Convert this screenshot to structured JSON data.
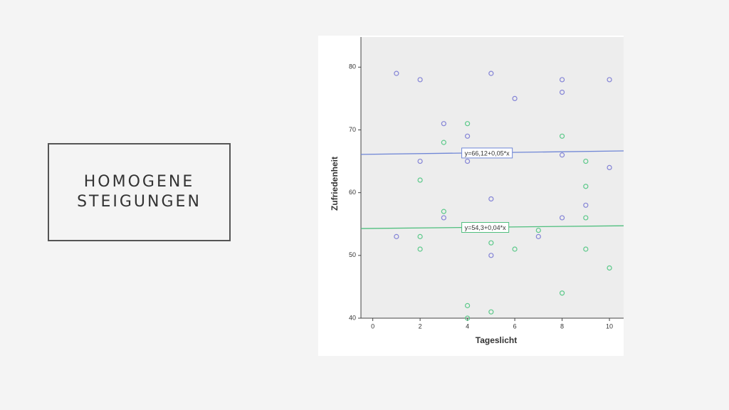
{
  "slide_title": "HOMOGENE STEIGUNGEN",
  "chart_data": {
    "type": "scatter",
    "x_label": "Tageslicht",
    "y_label": "Zufriedenheit",
    "xlim": [
      -0.5,
      10.6
    ],
    "ylim": [
      40,
      84.8
    ],
    "xticks": [
      0,
      2,
      4,
      6,
      8,
      10
    ],
    "yticks": [
      40,
      50,
      60,
      70,
      80
    ],
    "series": [
      {
        "color": "#8484d6",
        "x": [
          1,
          1,
          2,
          2,
          3,
          3,
          4,
          4,
          5,
          5,
          5,
          6,
          7,
          8,
          8,
          8,
          8,
          9,
          10,
          10
        ],
        "values": [
          79,
          53,
          78,
          65,
          71,
          56,
          69,
          65,
          79,
          59,
          50,
          75,
          53,
          78,
          76,
          66,
          56,
          58,
          78,
          64
        ]
      },
      {
        "color": "#5cc98a",
        "x": [
          2,
          2,
          2,
          3,
          3,
          4,
          4,
          4,
          5,
          5,
          6,
          7,
          8,
          8,
          9,
          9,
          9,
          9,
          10
        ],
        "values": [
          62,
          53,
          51,
          68,
          57,
          71,
          42,
          40,
          52,
          41,
          51,
          54,
          69,
          44,
          65,
          61,
          56,
          51,
          48
        ]
      }
    ],
    "fit_lines": [
      {
        "color": "#6f86d6",
        "intercept": 66.12,
        "slope": 0.05,
        "label": "y=66,12+0,05*x",
        "label_x": 4
      },
      {
        "color": "#4fbf7e",
        "intercept": 54.3,
        "slope": 0.04,
        "label": "y=54,3+0,04*x",
        "label_x": 4
      }
    ]
  }
}
